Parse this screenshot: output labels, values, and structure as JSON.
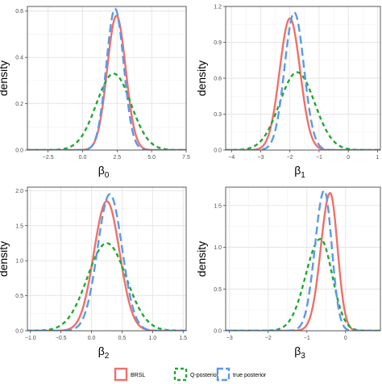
{
  "colors": {
    "brsl": "#f0706a",
    "q_posterior": "#1fa832",
    "true_posterior": "#5b9ae6",
    "grid_major": "#e4e4e4",
    "grid_minor": "#f2f2f2",
    "panel_border": "#333333"
  },
  "legend": {
    "position": "bottom",
    "items": [
      {
        "key": "brsl",
        "label": "BRSL"
      },
      {
        "key": "q_posterior",
        "label": "Q-posterior"
      },
      {
        "key": "true_posterior",
        "label": "true posterior"
      }
    ]
  },
  "chart_data": [
    {
      "type": "line",
      "ylabel": "density",
      "xlabel_base": "β",
      "xlabel_sub": "0",
      "xlim": [
        -4.0,
        7.5
      ],
      "ylim": [
        0,
        0.62
      ],
      "xticks": [
        -2.5,
        0.0,
        2.5,
        5.0,
        7.5
      ],
      "xtick_labels": [
        "−2.5",
        "0.0",
        "2.5",
        "5.0",
        "7.5"
      ],
      "yticks": [
        0.0,
        0.2,
        0.4,
        0.6
      ],
      "ytick_labels": [
        "0.0",
        "0.2",
        "0.4",
        "0.6"
      ],
      "grid": true,
      "series": [
        {
          "key": "brsl",
          "style": "solid",
          "mean": 2.45,
          "sd": 0.67,
          "peak": 0.58,
          "skew": 0.0
        },
        {
          "key": "q_posterior",
          "style": "dotted",
          "mean": 2.25,
          "sd": 1.25,
          "peak": 0.33,
          "skew": 0.0
        },
        {
          "key": "true_posterior",
          "style": "dashed",
          "mean": 2.35,
          "sd": 0.63,
          "peak": 0.61,
          "skew": 0.0
        }
      ]
    },
    {
      "type": "line",
      "ylabel": "density",
      "xlabel_base": "β",
      "xlabel_sub": "1",
      "xlim": [
        -4.2,
        1.1
      ],
      "ylim": [
        0,
        1.2
      ],
      "xticks": [
        -4,
        -3,
        -2,
        -1,
        0,
        1
      ],
      "xtick_labels": [
        "−4",
        "−3",
        "−2",
        "−1",
        "0",
        "1"
      ],
      "yticks": [
        0.0,
        0.3,
        0.6,
        0.9,
        1.2
      ],
      "ytick_labels": [
        "0.0",
        "0.3",
        "0.6",
        "0.9",
        "1.2"
      ],
      "grid": true,
      "series": [
        {
          "key": "brsl",
          "style": "solid",
          "mean": -2.0,
          "sd": 0.35,
          "peak": 1.1,
          "skew": 0.0
        },
        {
          "key": "q_posterior",
          "style": "dotted",
          "mean": -1.75,
          "sd": 0.6,
          "peak": 0.65,
          "skew": 0.0
        },
        {
          "key": "true_posterior",
          "style": "dashed",
          "mean": -1.85,
          "sd": 0.33,
          "peak": 1.15,
          "skew": 0.0
        }
      ]
    },
    {
      "type": "line",
      "ylabel": "density",
      "xlabel_base": "β",
      "xlabel_sub": "2",
      "xlim": [
        -1.05,
        1.55
      ],
      "ylim": [
        0,
        2.05
      ],
      "xticks": [
        -1.0,
        -0.5,
        0.0,
        0.5,
        1.0,
        1.5
      ],
      "xtick_labels": [
        "−1.0",
        "−0.5",
        "0.0",
        "0.5",
        "1.0",
        "1.5"
      ],
      "yticks": [
        0.0,
        0.5,
        1.0,
        1.5,
        2.0
      ],
      "ytick_labels": [
        "0.0",
        "0.5",
        "1.0",
        "1.5",
        "2.0"
      ],
      "grid": true,
      "series": [
        {
          "key": "brsl",
          "style": "solid",
          "mean": 0.25,
          "sd": 0.21,
          "peak": 1.85,
          "skew": 0.0
        },
        {
          "key": "q_posterior",
          "style": "dotted",
          "mean": 0.25,
          "sd": 0.32,
          "peak": 1.25,
          "skew": 0.0
        },
        {
          "key": "true_posterior",
          "style": "dashed",
          "mean": 0.3,
          "sd": 0.2,
          "peak": 1.95,
          "skew": 0.0
        }
      ]
    },
    {
      "type": "line",
      "ylabel": "density",
      "xlabel_base": "β",
      "xlabel_sub": "3",
      "xlim": [
        -3.1,
        0.9
      ],
      "ylim": [
        0,
        1.72
      ],
      "xticks": [
        -3,
        -2,
        -1,
        0
      ],
      "xtick_labels": [
        "−3",
        "−2",
        "−1",
        "0"
      ],
      "yticks": [
        0.0,
        0.5,
        1.0,
        1.5
      ],
      "ytick_labels": [
        "0.0",
        "0.5",
        "1.0",
        "1.5"
      ],
      "grid": true,
      "series": [
        {
          "key": "brsl",
          "style": "solid",
          "mean": -0.4,
          "sd": 0.24,
          "peak": 1.65,
          "skew": -1.0
        },
        {
          "key": "q_posterior",
          "style": "dotted",
          "mean": -0.65,
          "sd": 0.38,
          "peak": 1.1,
          "skew": -1.0
        },
        {
          "key": "true_posterior",
          "style": "dashed",
          "mean": -0.55,
          "sd": 0.24,
          "peak": 1.68,
          "skew": -1.0
        }
      ]
    }
  ]
}
